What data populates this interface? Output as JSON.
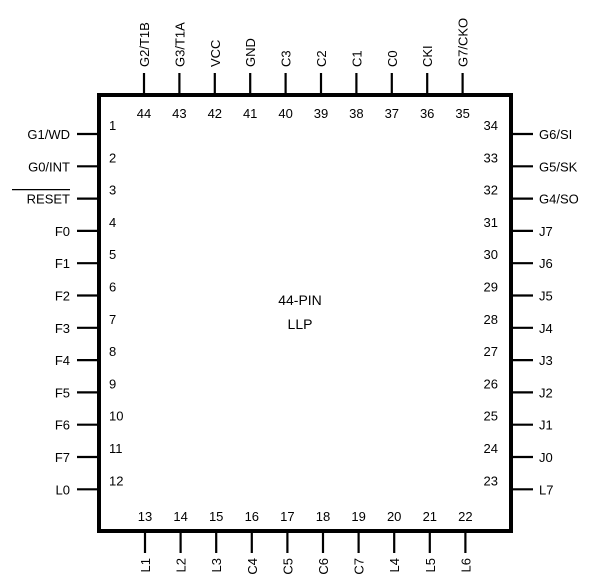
{
  "package": {
    "label_line1": "44-PIN",
    "label_line2": "LLP"
  },
  "pins_left": [
    {
      "num": "1",
      "name": "G1/WD"
    },
    {
      "num": "2",
      "name": "G0/INT"
    },
    {
      "num": "3",
      "name": "RESET",
      "overline": true
    },
    {
      "num": "4",
      "name": "F0"
    },
    {
      "num": "5",
      "name": "F1"
    },
    {
      "num": "6",
      "name": "F2"
    },
    {
      "num": "7",
      "name": "F3"
    },
    {
      "num": "8",
      "name": "F4"
    },
    {
      "num": "9",
      "name": "F5"
    },
    {
      "num": "10",
      "name": "F6"
    },
    {
      "num": "11",
      "name": "F7"
    },
    {
      "num": "12",
      "name": "L0"
    }
  ],
  "pins_bottom": [
    {
      "num": "13",
      "name": "L1"
    },
    {
      "num": "14",
      "name": "L2"
    },
    {
      "num": "15",
      "name": "L3"
    },
    {
      "num": "16",
      "name": "C4"
    },
    {
      "num": "17",
      "name": "C5"
    },
    {
      "num": "18",
      "name": "C6"
    },
    {
      "num": "19",
      "name": "C7"
    },
    {
      "num": "20",
      "name": "L4"
    },
    {
      "num": "21",
      "name": "L5"
    },
    {
      "num": "22",
      "name": "L6"
    }
  ],
  "pins_right": [
    {
      "num": "34",
      "name": "G6/SI"
    },
    {
      "num": "33",
      "name": "G5/SK"
    },
    {
      "num": "32",
      "name": "G4/SO"
    },
    {
      "num": "31",
      "name": "J7"
    },
    {
      "num": "30",
      "name": "J6"
    },
    {
      "num": "29",
      "name": "J5"
    },
    {
      "num": "28",
      "name": "J4"
    },
    {
      "num": "27",
      "name": "J3"
    },
    {
      "num": "26",
      "name": "J2"
    },
    {
      "num": "25",
      "name": "J1"
    },
    {
      "num": "24",
      "name": "J0"
    },
    {
      "num": "23",
      "name": "L7"
    }
  ],
  "pins_top": [
    {
      "num": "44",
      "name": "G2/T1B"
    },
    {
      "num": "43",
      "name": "G3/T1A"
    },
    {
      "num": "42",
      "name": "VCC"
    },
    {
      "num": "41",
      "name": "GND"
    },
    {
      "num": "40",
      "name": "C3"
    },
    {
      "num": "39",
      "name": "C2"
    },
    {
      "num": "38",
      "name": "C1"
    },
    {
      "num": "37",
      "name": "C0"
    },
    {
      "num": "36",
      "name": "CKI"
    },
    {
      "num": "35",
      "name": "G7/CKO"
    }
  ]
}
